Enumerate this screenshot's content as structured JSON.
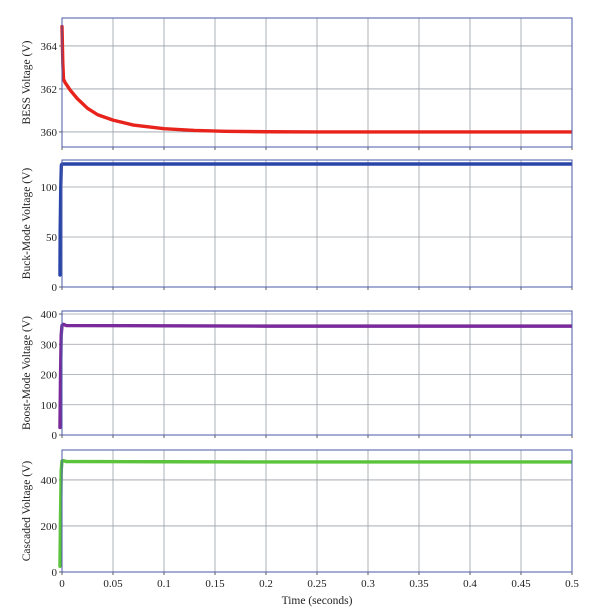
{
  "chart_data": [
    {
      "type": "line",
      "ylabel": "BESS Voltage (V)",
      "xlim": [
        0,
        0.5
      ],
      "ylim": [
        359.3,
        365.3
      ],
      "yticks": [
        360,
        362,
        364
      ],
      "xticks": [
        0,
        0.05,
        0.1,
        0.15,
        0.2,
        0.25,
        0.3,
        0.35,
        0.4,
        0.45,
        0.5
      ],
      "show_xtick_labels": false,
      "grid": true,
      "color": "#e8231c",
      "series": [
        {
          "x": [
            0,
            0.0008,
            0.0015,
            0.003,
            0.008,
            0.015,
            0.025,
            0.035,
            0.05,
            0.07,
            0.1,
            0.13,
            0.16,
            0.2,
            0.25,
            0.3,
            0.35,
            0.4,
            0.45,
            0.5
          ],
          "y": [
            364.9,
            363.2,
            362.45,
            362.3,
            361.95,
            361.55,
            361.1,
            360.8,
            360.55,
            360.32,
            360.15,
            360.07,
            360.03,
            360.01,
            360.0,
            360.0,
            360.0,
            360.0,
            360.0,
            360.0
          ]
        }
      ]
    },
    {
      "type": "line",
      "ylabel": "Buck-Mode Voltage (V)",
      "xlim": [
        0,
        0.5
      ],
      "ylim": [
        0,
        127
      ],
      "yticks": [
        0,
        50,
        100
      ],
      "xticks": [
        0,
        0.05,
        0.1,
        0.15,
        0.2,
        0.25,
        0.3,
        0.35,
        0.4,
        0.45,
        0.5
      ],
      "show_xtick_labels": false,
      "grid": true,
      "color": "#2a45a8",
      "series": [
        {
          "x": [
            -0.002,
            -0.0018,
            -0.0012,
            -0.0006,
            0.0,
            0.002,
            0.1,
            0.2,
            0.3,
            0.4,
            0.5
          ],
          "y": [
            12,
            55,
            100,
            122,
            123,
            123,
            123,
            123,
            123,
            123,
            123
          ]
        }
      ]
    },
    {
      "type": "line",
      "ylabel": "Boost-Mode Voltage (V)",
      "xlim": [
        0,
        0.5
      ],
      "ylim": [
        0,
        410
      ],
      "yticks": [
        0,
        100,
        200,
        300,
        400
      ],
      "xticks": [
        0,
        0.05,
        0.1,
        0.15,
        0.2,
        0.25,
        0.3,
        0.35,
        0.4,
        0.45,
        0.5
      ],
      "show_xtick_labels": false,
      "grid": true,
      "color": "#7a2a9a",
      "series": [
        {
          "x": [
            -0.002,
            -0.0015,
            -0.0008,
            0.0,
            0.0015,
            0.004,
            0.1,
            0.2,
            0.3,
            0.4,
            0.5
          ],
          "y": [
            25,
            180,
            330,
            362,
            366,
            362,
            361,
            360,
            360,
            360,
            360
          ]
        }
      ]
    },
    {
      "type": "line",
      "ylabel": "Cascaded Voltage (V)",
      "xlabel": "Time (seconds)",
      "xlim": [
        0,
        0.5
      ],
      "ylim": [
        0,
        530
      ],
      "yticks": [
        0,
        200,
        400
      ],
      "xticks": [
        0,
        0.05,
        0.1,
        0.15,
        0.2,
        0.25,
        0.3,
        0.35,
        0.4,
        0.45,
        0.5
      ],
      "xticklabels": [
        "0",
        "0.05",
        "0.1",
        "0.15",
        "0.2",
        "0.25",
        "0.3",
        "0.35",
        "0.4",
        "0.45",
        "0.5"
      ],
      "show_xtick_labels": true,
      "grid": true,
      "color": "#5cc43c",
      "series": [
        {
          "x": [
            -0.002,
            -0.0015,
            -0.0008,
            0.0,
            0.0015,
            0.004,
            0.1,
            0.2,
            0.3,
            0.4,
            0.5
          ],
          "y": [
            25,
            230,
            440,
            482,
            484,
            480,
            479,
            478,
            478,
            478,
            478
          ]
        }
      ]
    }
  ]
}
